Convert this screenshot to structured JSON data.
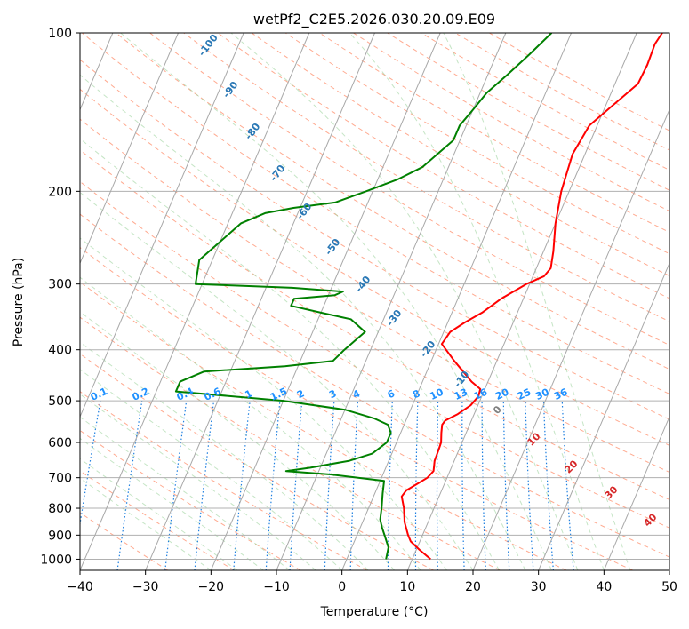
{
  "chart_data": {
    "type": "line",
    "title": "wetPf2_C2E5.2026.030.20.09.E09",
    "xlabel": "Temperature (°C)",
    "ylabel": "Pressure (hPa)",
    "xlim": [
      -40,
      50
    ],
    "ylim": [
      1050,
      100
    ],
    "y_scale": "log",
    "grid": true,
    "x_ticks": [
      -40,
      -30,
      -20,
      -10,
      0,
      10,
      20,
      30,
      40,
      50
    ],
    "y_ticks": [
      1000,
      900,
      800,
      700,
      600,
      500,
      400,
      300,
      200,
      100
    ],
    "series": [
      {
        "color": "#ff0000",
        "points": [
          [
            12.8,
            1000
          ],
          [
            10.5,
            960
          ],
          [
            8.6,
            925
          ],
          [
            7.8,
            900
          ],
          [
            6.4,
            850
          ],
          [
            5.4,
            800
          ],
          [
            4.3,
            760
          ],
          [
            4.6,
            740
          ],
          [
            5.8,
            720
          ],
          [
            7.0,
            700
          ],
          [
            7.5,
            680
          ],
          [
            7.0,
            650
          ],
          [
            6.9,
            620
          ],
          [
            6.8,
            600
          ],
          [
            6.2,
            575
          ],
          [
            5.8,
            555
          ],
          [
            6.0,
            545
          ],
          [
            7.5,
            530
          ],
          [
            8.9,
            510
          ],
          [
            9.5,
            490
          ],
          [
            9.3,
            475
          ],
          [
            7.5,
            460
          ],
          [
            3.5,
            420
          ],
          [
            0.5,
            390
          ],
          [
            1.0,
            370
          ],
          [
            2.6,
            355
          ],
          [
            4.6,
            340
          ],
          [
            6.6,
            320
          ],
          [
            9.5,
            300
          ],
          [
            11.7,
            290
          ],
          [
            12.2,
            280
          ],
          [
            11.5,
            260
          ],
          [
            10.0,
            230
          ],
          [
            8.8,
            200
          ],
          [
            8.1,
            170
          ],
          [
            8.8,
            150
          ],
          [
            11.5,
            135
          ],
          [
            13.5,
            125
          ],
          [
            13.7,
            115
          ],
          [
            13.5,
            105
          ],
          [
            13.9,
            100
          ]
        ]
      },
      {
        "color": "#008000",
        "points": [
          [
            6.0,
            1000
          ],
          [
            5.6,
            950
          ],
          [
            4.2,
            900
          ],
          [
            3.3,
            870
          ],
          [
            2.5,
            840
          ],
          [
            2.0,
            800
          ],
          [
            1.2,
            750
          ],
          [
            0.6,
            710
          ],
          [
            -8,
            690
          ],
          [
            -15,
            680
          ],
          [
            -11.5,
            670
          ],
          [
            -6,
            650
          ],
          [
            -3,
            630
          ],
          [
            -1.5,
            600
          ],
          [
            -1.5,
            575
          ],
          [
            -2.5,
            555
          ],
          [
            -5,
            540
          ],
          [
            -10,
            520
          ],
          [
            -20,
            500
          ],
          [
            -37,
            480
          ],
          [
            -37,
            460
          ],
          [
            -34,
            440
          ],
          [
            -22,
            430
          ],
          [
            -15,
            420
          ],
          [
            -14,
            400
          ],
          [
            -12,
            370
          ],
          [
            -15,
            350
          ],
          [
            -20,
            340
          ],
          [
            -25,
            330
          ],
          [
            -25,
            320
          ],
          [
            -19,
            315
          ],
          [
            -18,
            310
          ],
          [
            -26,
            305
          ],
          [
            -41,
            300
          ],
          [
            -42,
            270
          ],
          [
            -38,
            230
          ],
          [
            -35,
            220
          ],
          [
            -31,
            215
          ],
          [
            -25,
            210
          ],
          [
            -21,
            200
          ],
          [
            -17,
            190
          ],
          [
            -14,
            180
          ],
          [
            -11,
            160
          ],
          [
            -11,
            150
          ],
          [
            -10,
            140
          ],
          [
            -9,
            130
          ],
          [
            -7,
            120
          ],
          [
            -5,
            110
          ],
          [
            -3,
            100
          ]
        ]
      }
    ],
    "dry_adiabat_labels": [
      "-100",
      "-90",
      "-80",
      "-70",
      "-60",
      "-50",
      "-40",
      "-30",
      "-20",
      "-10"
    ],
    "moist_adiabat_labels": [
      "0",
      "10",
      "20",
      "30",
      "40"
    ],
    "mixing_ratio_labels": [
      "0.1",
      "0.2",
      "0.4",
      "0.6",
      "1",
      "1.5",
      "2",
      "3",
      "4",
      "6",
      "8",
      "10",
      "13",
      "16",
      "20",
      "25",
      "30",
      "36"
    ]
  }
}
